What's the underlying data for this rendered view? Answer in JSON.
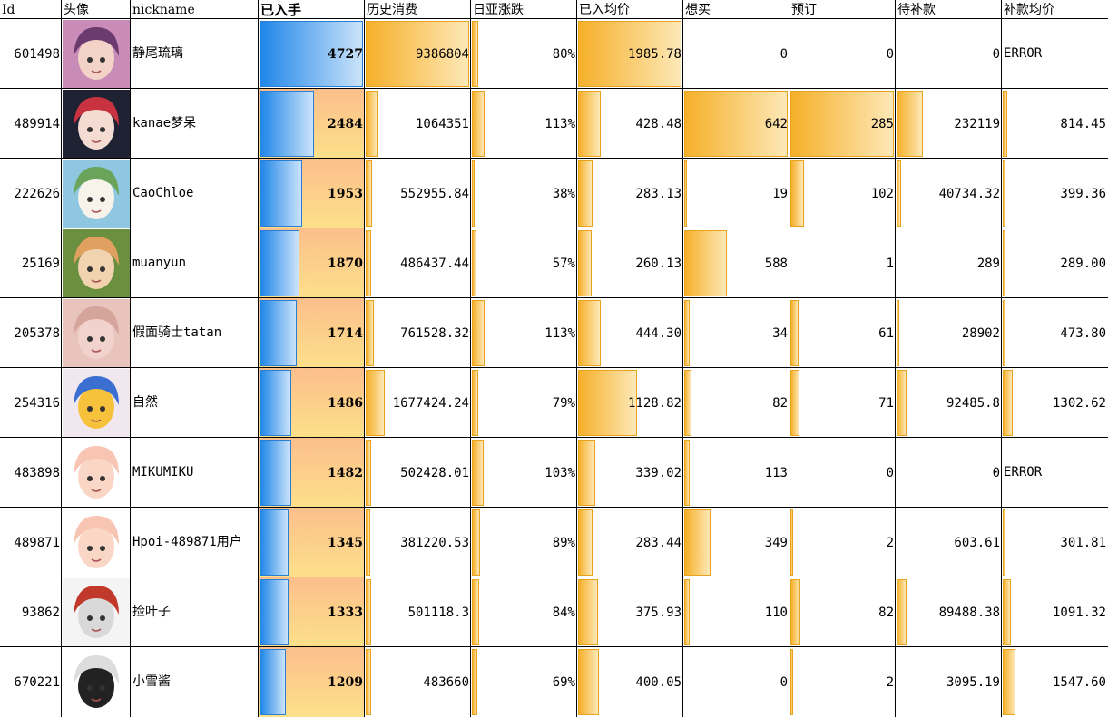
{
  "headers": [
    "Id",
    "头像",
    "nickname",
    "已入手",
    "历史消费",
    "日亚涨跌",
    "已入均价",
    "想买",
    "预订",
    "待补款",
    "补款均价"
  ],
  "rows": [
    {
      "id": "601498",
      "nickname": "静尾琉璃",
      "owned": "4727",
      "spent": "9386804",
      "change": "80%",
      "avg": "1985.78",
      "want": "0",
      "preorder": "0",
      "pending": "0",
      "pending_avg": "ERROR",
      "avatar": "purple-hair-girl-avatar",
      "bar": {
        "owned": 1.0,
        "spent": 1.0,
        "change": 0.06,
        "avg": 1.0,
        "want": 0.0,
        "preorder": 0.0,
        "pending": 0.0,
        "pending_avg": 0.0
      }
    },
    {
      "id": "489914",
      "nickname": "kanae梦呆",
      "owned": "2484",
      "spent": "1064351",
      "change": "113%",
      "avg": "428.48",
      "want": "642",
      "preorder": "285",
      "pending": "232119",
      "pending_avg": "814.45",
      "avatar": "black-hair-girl-avatar",
      "bar": {
        "owned": 0.53,
        "spent": 0.11,
        "change": 0.12,
        "avg": 0.22,
        "want": 1.0,
        "preorder": 1.0,
        "pending": 0.25,
        "pending_avg": 0.04
      }
    },
    {
      "id": "222626",
      "nickname": "CaoChloe",
      "owned": "1953",
      "spent": "552955.84",
      "change": "38%",
      "avg": "283.13",
      "want": "19",
      "preorder": "102",
      "pending": "40734.32",
      "pending_avg": "399.36",
      "avatar": "white-hair-figure-avatar",
      "bar": {
        "owned": 0.41,
        "spent": 0.06,
        "change": 0.03,
        "avg": 0.14,
        "want": 0.03,
        "preorder": 0.13,
        "pending": 0.04,
        "pending_avg": 0.02
      }
    },
    {
      "id": "25169",
      "nickname": "muanyun",
      "owned": "1870",
      "spent": "486437.44",
      "change": "57%",
      "avg": "260.13",
      "want": "588",
      "preorder": "1",
      "pending": "289",
      "pending_avg": "289.00",
      "avatar": "two-chibi-avatar",
      "bar": {
        "owned": 0.39,
        "spent": 0.05,
        "change": 0.04,
        "avg": 0.13,
        "want": 0.41,
        "preorder": 0.0,
        "pending": 0.0,
        "pending_avg": 0.01
      }
    },
    {
      "id": "205378",
      "nickname": "假面骑士tatan",
      "owned": "1714",
      "spent": "761528.32",
      "change": "113%",
      "avg": "444.30",
      "want": "34",
      "preorder": "61",
      "pending": "28902",
      "pending_avg": "473.80",
      "avatar": "sleeping-face-avatar",
      "bar": {
        "owned": 0.36,
        "spent": 0.08,
        "change": 0.12,
        "avg": 0.22,
        "want": 0.05,
        "preorder": 0.08,
        "pending": 0.03,
        "pending_avg": 0.02
      }
    },
    {
      "id": "254316",
      "nickname": "自然",
      "owned": "1486",
      "spent": "1677424.24",
      "change": "79%",
      "avg": "1128.82",
      "want": "82",
      "preorder": "71",
      "pending": "92485.8",
      "pending_avg": "1302.62",
      "avatar": "pop-team-epic-avatar",
      "bar": {
        "owned": 0.31,
        "spent": 0.18,
        "change": 0.06,
        "avg": 0.57,
        "want": 0.07,
        "preorder": 0.09,
        "pending": 0.1,
        "pending_avg": 0.1
      }
    },
    {
      "id": "483898",
      "nickname": "MIKUMIKU",
      "owned": "1482",
      "spent": "502428.01",
      "change": "103%",
      "avg": "339.02",
      "want": "113",
      "preorder": "0",
      "pending": "0",
      "pending_avg": "ERROR",
      "avatar": "pink-hair-chibi-avatar",
      "bar": {
        "owned": 0.31,
        "spent": 0.05,
        "change": 0.11,
        "avg": 0.17,
        "want": 0.05,
        "preorder": 0.0,
        "pending": 0.0,
        "pending_avg": 0.0
      }
    },
    {
      "id": "489871",
      "nickname": "Hpoi-489871用户",
      "owned": "1345",
      "spent": "381220.53",
      "change": "89%",
      "avg": "283.44",
      "want": "349",
      "preorder": "2",
      "pending": "603.61",
      "pending_avg": "301.81",
      "avatar": "pink-hair-chibi-avatar-2",
      "bar": {
        "owned": 0.28,
        "spent": 0.04,
        "change": 0.08,
        "avg": 0.14,
        "want": 0.25,
        "preorder": 0.01,
        "pending": 0.0,
        "pending_avg": 0.02
      }
    },
    {
      "id": "93862",
      "nickname": "捡叶子",
      "owned": "1333",
      "spent": "501118.3",
      "change": "84%",
      "avg": "375.93",
      "want": "110",
      "preorder": "82",
      "pending": "89488.38",
      "pending_avg": "1091.32",
      "avatar": "white-hair-boy-avatar",
      "bar": {
        "owned": 0.28,
        "spent": 0.05,
        "change": 0.07,
        "avg": 0.19,
        "want": 0.05,
        "preorder": 0.1,
        "pending": 0.1,
        "pending_avg": 0.08
      }
    },
    {
      "id": "670221",
      "nickname": "小雪酱",
      "owned": "1209",
      "spent": "483660",
      "change": "69%",
      "avg": "400.05",
      "want": "0",
      "preorder": "2",
      "pending": "3095.19",
      "pending_avg": "1547.60",
      "avatar": "manga-girl-avatar",
      "bar": {
        "owned": 0.25,
        "spent": 0.05,
        "change": 0.05,
        "avg": 0.2,
        "want": 0.0,
        "preorder": 0.01,
        "pending": 0.0,
        "pending_avg": 0.12
      }
    }
  ],
  "colors": {
    "orange": "#f6b02a",
    "blue": "#1f86e8",
    "owned_bg_top": "#fbbf8c",
    "owned_bg_bottom": "#fde08a"
  }
}
